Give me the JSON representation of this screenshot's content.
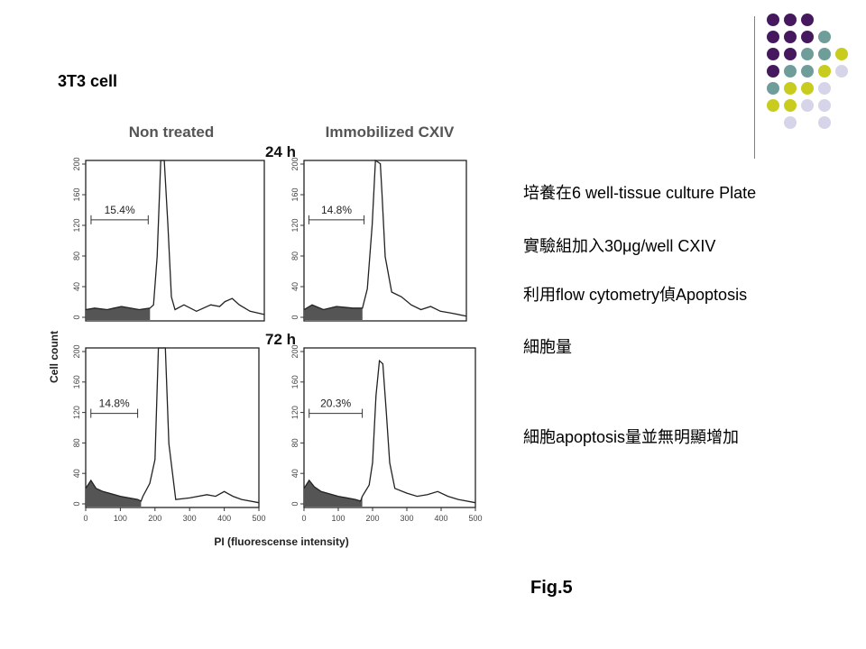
{
  "slide": {
    "title": "3T3 cell",
    "bullets": [
      "培養在6 well-tissue culture Plate",
      "實驗組加入30μg/well CXIV",
      "利用flow cytometry偵Apoptosis",
      "細胞量",
      "細胞apoptosis量並無明顯增加"
    ],
    "figure_label": "Fig.5"
  },
  "decoration": {
    "dot_colors": {
      "purple": "#46195f",
      "teal": "#6f9e9a",
      "yellow": "#c8cc1e",
      "lilac": "#d6d4e8"
    },
    "dot_grid": [
      [
        "purple",
        "purple",
        "purple",
        null
      ],
      [
        "purple",
        "purple",
        "purple",
        "teal"
      ],
      [
        "purple",
        "purple",
        "teal",
        "teal",
        "yellow"
      ],
      [
        "purple",
        "teal",
        "teal",
        "yellow",
        "lilac"
      ],
      [
        "teal",
        "yellow",
        "yellow",
        "lilac"
      ],
      [
        "yellow",
        "yellow",
        "lilac",
        "lilac"
      ],
      [
        null,
        "lilac",
        null,
        "lilac"
      ]
    ]
  },
  "figure": {
    "col_titles": [
      "Non treated",
      "Immobilized CXIV"
    ],
    "time_labels": [
      "24 h",
      "72 h"
    ],
    "y_axis_label": "Cell count",
    "x_axis_label": "PI (fluorescense intensity)",
    "y_ticks": [
      "0",
      "40",
      "80",
      "120",
      "160",
      "200"
    ],
    "x_ticks": [
      "0",
      "100",
      "200",
      "300",
      "400",
      "500"
    ],
    "panels": [
      {
        "name": "non-treated-24h",
        "percent": "15.4%"
      },
      {
        "name": "cxiv-24h",
        "percent": "14.8%"
      },
      {
        "name": "non-treated-72h",
        "percent": "14.8%"
      },
      {
        "name": "cxiv-72h",
        "percent": "20.3%"
      }
    ]
  }
}
